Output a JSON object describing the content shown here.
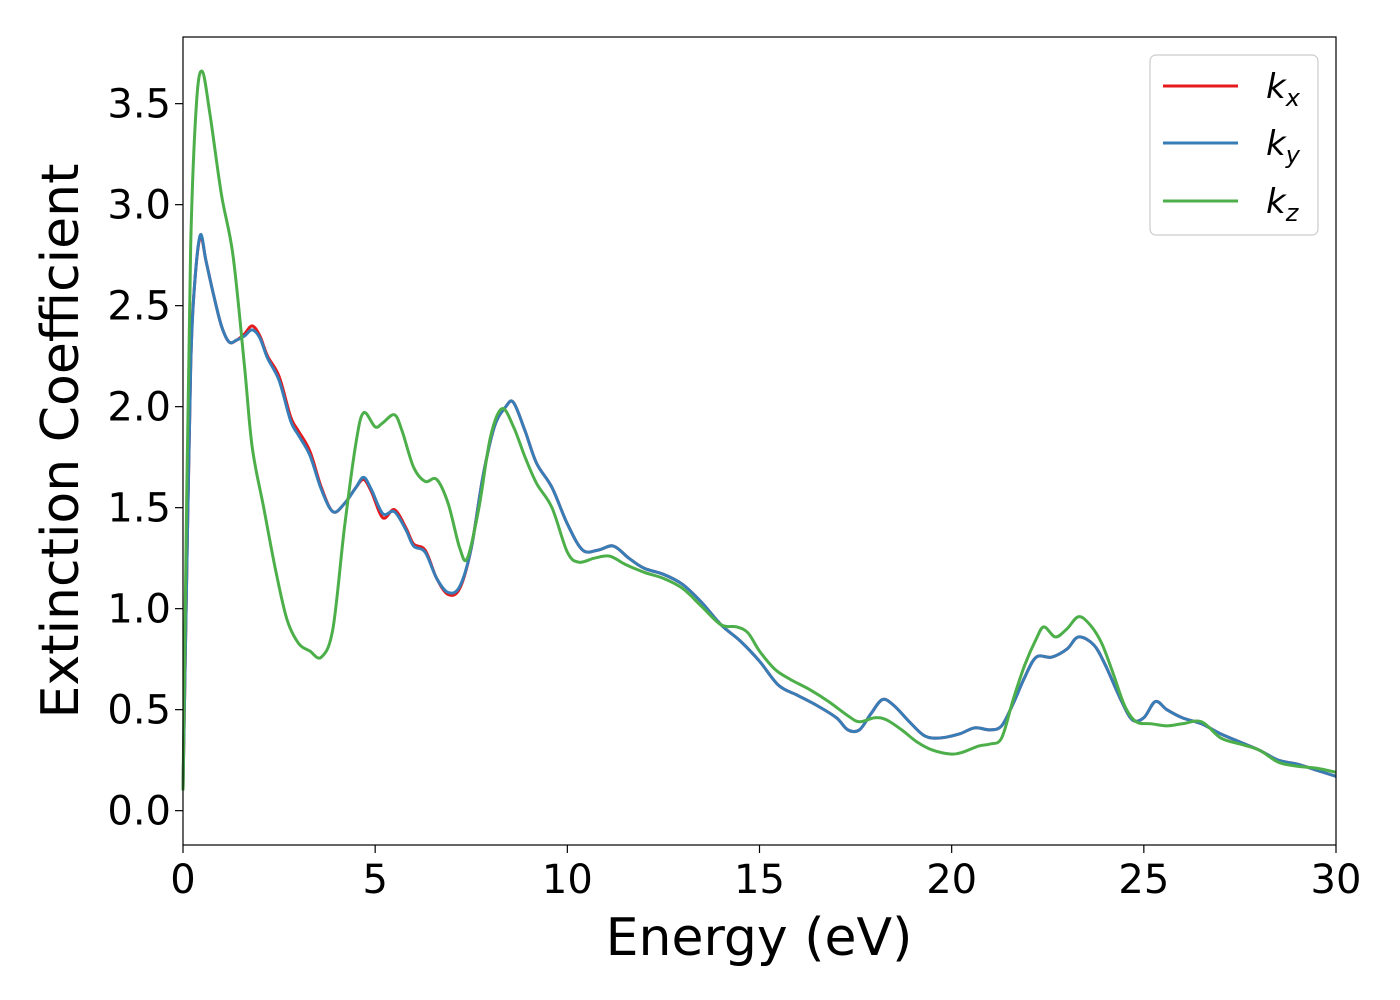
{
  "chart_data": {
    "type": "line",
    "title": "",
    "xlabel": "Energy (eV)",
    "ylabel": "Extinction Coefficient",
    "xlim": [
      0,
      30
    ],
    "ylim": [
      -0.17,
      3.83
    ],
    "xticks": [
      0,
      5,
      10,
      15,
      20,
      25,
      30
    ],
    "xtick_labels": [
      "0",
      "5",
      "10",
      "15",
      "20",
      "25",
      "30"
    ],
    "yticks": [
      0.0,
      0.5,
      1.0,
      1.5,
      2.0,
      2.5,
      3.0,
      3.5
    ],
    "ytick_labels": [
      "0.0",
      "0.5",
      "1.0",
      "1.5",
      "2.0",
      "2.5",
      "3.0",
      "3.5"
    ],
    "grid": false,
    "legend_position": "top-right",
    "series": [
      {
        "name": "k",
        "subscript": "x",
        "color": "#e41a1c",
        "points": [
          [
            0,
            0.1
          ],
          [
            0.1,
            1.2
          ],
          [
            0.2,
            2.2
          ],
          [
            0.3,
            2.6
          ],
          [
            0.45,
            2.84
          ],
          [
            0.6,
            2.72
          ],
          [
            0.8,
            2.55
          ],
          [
            1.0,
            2.4
          ],
          [
            1.2,
            2.32
          ],
          [
            1.4,
            2.33
          ],
          [
            1.6,
            2.36
          ],
          [
            1.8,
            2.4
          ],
          [
            2.0,
            2.35
          ],
          [
            2.2,
            2.25
          ],
          [
            2.5,
            2.15
          ],
          [
            2.8,
            1.95
          ],
          [
            3.0,
            1.88
          ],
          [
            3.3,
            1.78
          ],
          [
            3.6,
            1.6
          ],
          [
            3.9,
            1.48
          ],
          [
            4.2,
            1.52
          ],
          [
            4.5,
            1.6
          ],
          [
            4.7,
            1.64
          ],
          [
            4.9,
            1.58
          ],
          [
            5.2,
            1.45
          ],
          [
            5.5,
            1.49
          ],
          [
            5.8,
            1.4
          ],
          [
            6.0,
            1.32
          ],
          [
            6.3,
            1.29
          ],
          [
            6.6,
            1.15
          ],
          [
            6.9,
            1.07
          ],
          [
            7.2,
            1.1
          ],
          [
            7.5,
            1.3
          ],
          [
            7.8,
            1.65
          ],
          [
            8.1,
            1.9
          ],
          [
            8.4,
            2.0
          ],
          [
            8.6,
            2.02
          ],
          [
            8.9,
            1.88
          ],
          [
            9.2,
            1.72
          ],
          [
            9.6,
            1.6
          ],
          [
            10.0,
            1.42
          ],
          [
            10.4,
            1.29
          ],
          [
            10.8,
            1.29
          ],
          [
            11.2,
            1.31
          ],
          [
            11.6,
            1.25
          ],
          [
            12.0,
            1.2
          ],
          [
            12.5,
            1.17
          ],
          [
            13.0,
            1.12
          ],
          [
            13.5,
            1.03
          ],
          [
            14.0,
            0.92
          ],
          [
            14.5,
            0.84
          ],
          [
            15.0,
            0.74
          ],
          [
            15.5,
            0.62
          ],
          [
            16.0,
            0.57
          ],
          [
            16.5,
            0.52
          ],
          [
            17.0,
            0.46
          ],
          [
            17.3,
            0.4
          ],
          [
            17.6,
            0.4
          ],
          [
            17.9,
            0.48
          ],
          [
            18.2,
            0.55
          ],
          [
            18.5,
            0.52
          ],
          [
            18.9,
            0.44
          ],
          [
            19.3,
            0.37
          ],
          [
            19.7,
            0.36
          ],
          [
            20.2,
            0.38
          ],
          [
            20.6,
            0.41
          ],
          [
            21.0,
            0.4
          ],
          [
            21.3,
            0.42
          ],
          [
            21.6,
            0.53
          ],
          [
            21.9,
            0.66
          ],
          [
            22.2,
            0.76
          ],
          [
            22.6,
            0.76
          ],
          [
            23.0,
            0.8
          ],
          [
            23.3,
            0.86
          ],
          [
            23.7,
            0.82
          ],
          [
            24.0,
            0.72
          ],
          [
            24.4,
            0.55
          ],
          [
            24.7,
            0.45
          ],
          [
            25.0,
            0.46
          ],
          [
            25.3,
            0.54
          ],
          [
            25.6,
            0.5
          ],
          [
            26.0,
            0.46
          ],
          [
            26.5,
            0.43
          ],
          [
            27.0,
            0.38
          ],
          [
            27.5,
            0.34
          ],
          [
            28.0,
            0.3
          ],
          [
            28.5,
            0.25
          ],
          [
            29.0,
            0.23
          ],
          [
            29.5,
            0.2
          ],
          [
            30.0,
            0.17
          ]
        ]
      },
      {
        "name": "k",
        "subscript": "y",
        "color": "#377eb8",
        "points": [
          [
            0,
            0.1
          ],
          [
            0.1,
            1.2
          ],
          [
            0.2,
            2.2
          ],
          [
            0.3,
            2.6
          ],
          [
            0.45,
            2.85
          ],
          [
            0.6,
            2.72
          ],
          [
            0.8,
            2.55
          ],
          [
            1.0,
            2.4
          ],
          [
            1.2,
            2.32
          ],
          [
            1.4,
            2.33
          ],
          [
            1.6,
            2.35
          ],
          [
            1.8,
            2.38
          ],
          [
            2.0,
            2.34
          ],
          [
            2.2,
            2.24
          ],
          [
            2.5,
            2.13
          ],
          [
            2.8,
            1.93
          ],
          [
            3.0,
            1.86
          ],
          [
            3.3,
            1.76
          ],
          [
            3.6,
            1.59
          ],
          [
            3.9,
            1.48
          ],
          [
            4.2,
            1.52
          ],
          [
            4.5,
            1.6
          ],
          [
            4.7,
            1.65
          ],
          [
            4.9,
            1.59
          ],
          [
            5.2,
            1.47
          ],
          [
            5.5,
            1.48
          ],
          [
            5.8,
            1.39
          ],
          [
            6.0,
            1.31
          ],
          [
            6.3,
            1.28
          ],
          [
            6.6,
            1.15
          ],
          [
            6.9,
            1.08
          ],
          [
            7.2,
            1.11
          ],
          [
            7.5,
            1.3
          ],
          [
            7.8,
            1.65
          ],
          [
            8.1,
            1.9
          ],
          [
            8.4,
            2.0
          ],
          [
            8.6,
            2.02
          ],
          [
            8.9,
            1.88
          ],
          [
            9.2,
            1.72
          ],
          [
            9.6,
            1.6
          ],
          [
            10.0,
            1.42
          ],
          [
            10.4,
            1.29
          ],
          [
            10.8,
            1.29
          ],
          [
            11.2,
            1.31
          ],
          [
            11.6,
            1.25
          ],
          [
            12.0,
            1.2
          ],
          [
            12.5,
            1.17
          ],
          [
            13.0,
            1.12
          ],
          [
            13.5,
            1.03
          ],
          [
            14.0,
            0.92
          ],
          [
            14.5,
            0.84
          ],
          [
            15.0,
            0.74
          ],
          [
            15.5,
            0.62
          ],
          [
            16.0,
            0.57
          ],
          [
            16.5,
            0.52
          ],
          [
            17.0,
            0.46
          ],
          [
            17.3,
            0.4
          ],
          [
            17.6,
            0.4
          ],
          [
            17.9,
            0.48
          ],
          [
            18.2,
            0.55
          ],
          [
            18.5,
            0.52
          ],
          [
            18.9,
            0.44
          ],
          [
            19.3,
            0.37
          ],
          [
            19.7,
            0.36
          ],
          [
            20.2,
            0.38
          ],
          [
            20.6,
            0.41
          ],
          [
            21.0,
            0.4
          ],
          [
            21.3,
            0.42
          ],
          [
            21.6,
            0.53
          ],
          [
            21.9,
            0.66
          ],
          [
            22.2,
            0.76
          ],
          [
            22.6,
            0.76
          ],
          [
            23.0,
            0.8
          ],
          [
            23.3,
            0.86
          ],
          [
            23.7,
            0.82
          ],
          [
            24.0,
            0.72
          ],
          [
            24.4,
            0.55
          ],
          [
            24.7,
            0.45
          ],
          [
            25.0,
            0.46
          ],
          [
            25.3,
            0.54
          ],
          [
            25.6,
            0.5
          ],
          [
            26.0,
            0.46
          ],
          [
            26.5,
            0.43
          ],
          [
            27.0,
            0.38
          ],
          [
            27.5,
            0.34
          ],
          [
            28.0,
            0.3
          ],
          [
            28.5,
            0.25
          ],
          [
            29.0,
            0.23
          ],
          [
            29.5,
            0.2
          ],
          [
            30.0,
            0.17
          ]
        ]
      },
      {
        "name": "k",
        "subscript": "z",
        "color": "#4daf4a",
        "points": [
          [
            0,
            0.1
          ],
          [
            0.1,
            1.6
          ],
          [
            0.2,
            2.8
          ],
          [
            0.35,
            3.5
          ],
          [
            0.5,
            3.66
          ],
          [
            0.7,
            3.45
          ],
          [
            1.0,
            3.05
          ],
          [
            1.3,
            2.75
          ],
          [
            1.6,
            2.2
          ],
          [
            1.8,
            1.8
          ],
          [
            2.1,
            1.5
          ],
          [
            2.4,
            1.2
          ],
          [
            2.7,
            0.95
          ],
          [
            3.0,
            0.83
          ],
          [
            3.3,
            0.79
          ],
          [
            3.6,
            0.76
          ],
          [
            3.9,
            0.9
          ],
          [
            4.2,
            1.4
          ],
          [
            4.5,
            1.82
          ],
          [
            4.7,
            1.97
          ],
          [
            5.0,
            1.9
          ],
          [
            5.2,
            1.92
          ],
          [
            5.5,
            1.96
          ],
          [
            5.7,
            1.88
          ],
          [
            6.0,
            1.7
          ],
          [
            6.3,
            1.63
          ],
          [
            6.6,
            1.64
          ],
          [
            6.9,
            1.52
          ],
          [
            7.2,
            1.3
          ],
          [
            7.4,
            1.25
          ],
          [
            7.7,
            1.5
          ],
          [
            8.0,
            1.85
          ],
          [
            8.3,
            1.99
          ],
          [
            8.6,
            1.9
          ],
          [
            8.9,
            1.75
          ],
          [
            9.2,
            1.62
          ],
          [
            9.6,
            1.5
          ],
          [
            10.0,
            1.28
          ],
          [
            10.3,
            1.23
          ],
          [
            10.7,
            1.25
          ],
          [
            11.1,
            1.26
          ],
          [
            11.5,
            1.22
          ],
          [
            12.0,
            1.18
          ],
          [
            12.5,
            1.15
          ],
          [
            13.0,
            1.1
          ],
          [
            13.5,
            1.01
          ],
          [
            14.0,
            0.92
          ],
          [
            14.4,
            0.91
          ],
          [
            14.7,
            0.88
          ],
          [
            15.0,
            0.79
          ],
          [
            15.4,
            0.7
          ],
          [
            15.8,
            0.65
          ],
          [
            16.3,
            0.6
          ],
          [
            16.8,
            0.54
          ],
          [
            17.3,
            0.47
          ],
          [
            17.6,
            0.44
          ],
          [
            18.0,
            0.46
          ],
          [
            18.3,
            0.45
          ],
          [
            18.7,
            0.4
          ],
          [
            19.1,
            0.34
          ],
          [
            19.5,
            0.3
          ],
          [
            20.0,
            0.28
          ],
          [
            20.3,
            0.29
          ],
          [
            20.7,
            0.32
          ],
          [
            21.0,
            0.33
          ],
          [
            21.3,
            0.36
          ],
          [
            21.6,
            0.55
          ],
          [
            21.9,
            0.72
          ],
          [
            22.2,
            0.85
          ],
          [
            22.4,
            0.91
          ],
          [
            22.7,
            0.86
          ],
          [
            23.0,
            0.9
          ],
          [
            23.3,
            0.96
          ],
          [
            23.6,
            0.92
          ],
          [
            23.9,
            0.83
          ],
          [
            24.2,
            0.68
          ],
          [
            24.5,
            0.52
          ],
          [
            24.8,
            0.44
          ],
          [
            25.2,
            0.43
          ],
          [
            25.6,
            0.42
          ],
          [
            26.0,
            0.43
          ],
          [
            26.5,
            0.44
          ],
          [
            27.0,
            0.36
          ],
          [
            27.5,
            0.33
          ],
          [
            28.0,
            0.3
          ],
          [
            28.5,
            0.24
          ],
          [
            29.0,
            0.22
          ],
          [
            29.5,
            0.21
          ],
          [
            30.0,
            0.19
          ]
        ]
      }
    ]
  }
}
